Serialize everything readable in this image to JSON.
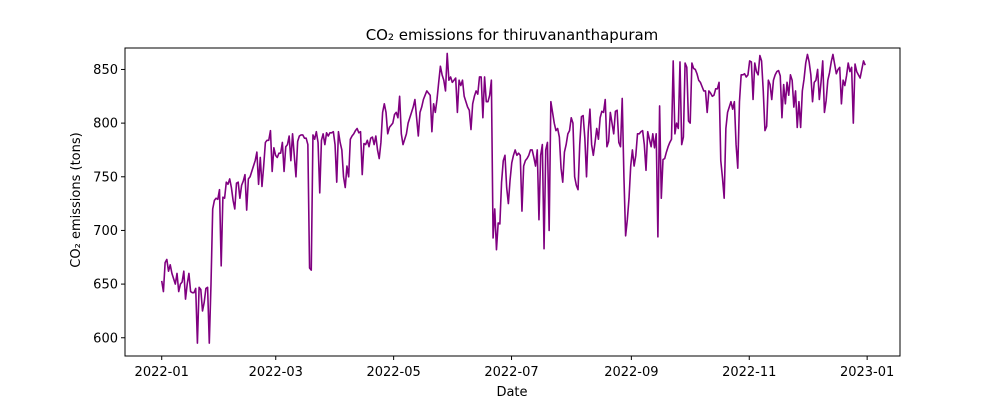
{
  "chart_data": {
    "type": "line",
    "title": "CO₂ emissions for thiruvananthapuram",
    "xlabel": "Date",
    "ylabel": "CO₂ emissions (tons)",
    "x_start": "2022-01-01",
    "x_end": "2022-12-31",
    "xlim": [
      "2021-12-13",
      "2023-01-18"
    ],
    "ylim": [
      583,
      870
    ],
    "x_ticks": [
      "2022-01-01",
      "2022-03-01",
      "2022-05-01",
      "2022-07-01",
      "2022-09-01",
      "2022-11-01",
      "2023-01-01"
    ],
    "x_tick_labels": [
      "2022-01",
      "2022-03",
      "2022-05",
      "2022-07",
      "2022-09",
      "2022-11",
      "2023-01"
    ],
    "y_ticks": [
      600,
      650,
      700,
      750,
      800,
      850
    ],
    "y_tick_labels": [
      "600",
      "650",
      "700",
      "750",
      "800",
      "850"
    ],
    "grid": false,
    "line_color": "#800080",
    "series": [
      {
        "values": [
          653,
          643,
          670,
          673,
          662,
          668,
          660,
          655,
          650,
          660,
          643,
          650,
          652,
          662,
          636,
          650,
          660,
          643,
          642,
          642,
          646,
          595,
          647,
          645,
          625,
          633,
          646,
          647,
          595,
          650,
          720,
          728,
          730,
          729,
          738,
          667,
          731,
          730,
          745,
          743,
          748,
          740,
          728,
          720,
          744,
          745,
          730,
          742,
          746,
          752,
          719,
          748,
          750,
          755,
          760,
          765,
          773,
          743,
          768,
          741,
          760,
          782,
          784,
          784,
          793,
          755,
          777,
          770,
          768,
          772,
          772,
          782,
          755,
          778,
          780,
          788,
          765,
          790,
          770,
          750,
          783,
          788,
          789,
          789,
          786,
          786,
          780,
          665,
          663,
          789,
          785,
          792,
          782,
          735,
          784,
          790,
          780,
          791,
          788,
          791,
          791,
          792,
          780,
          745,
          792,
          782,
          775,
          750,
          740,
          760,
          750,
          785,
          788,
          790,
          793,
          795,
          791,
          792,
          752,
          781,
          780,
          784,
          778,
          786,
          787,
          780,
          788,
          775,
          767,
          782,
          810,
          818,
          810,
          790,
          796,
          798,
          800,
          808,
          810,
          805,
          825,
          790,
          780,
          785,
          790,
          800,
          805,
          810,
          815,
          822,
          805,
          788,
          810,
          815,
          822,
          826,
          830,
          828,
          826,
          792,
          818,
          810,
          822,
          838,
          853,
          845,
          840,
          830,
          865,
          840,
          843,
          838,
          840,
          842,
          810,
          840,
          835,
          840,
          825,
          820,
          815,
          812,
          794,
          818,
          825,
          830,
          827,
          843,
          843,
          805,
          843,
          820,
          820,
          826,
          840,
          693,
          720,
          682,
          707,
          706,
          745,
          765,
          770,
          740,
          725,
          747,
          763,
          770,
          775,
          770,
          772,
          770,
          718,
          760,
          765,
          767,
          770,
          775,
          775,
          768,
          760,
          775,
          710,
          770,
          780,
          683,
          775,
          782,
          700,
          820,
          810,
          800,
          793,
          795,
          787,
          758,
          745,
          773,
          780,
          790,
          793,
          805,
          800,
          750,
          742,
          738,
          780,
          806,
          807,
          786,
          750,
          792,
          813,
          780,
          770,
          782,
          795,
          785,
          805,
          811,
          810,
          822,
          778,
          783,
          810,
          800,
          790,
          811,
          812,
          782,
          778,
          823,
          750,
          695,
          710,
          730,
          760,
          775,
          760,
          770,
          790,
          790,
          792,
          793,
          780,
          756,
          792,
          785,
          778,
          790,
          777,
          790,
          694,
          816,
          730,
          766,
          767,
          773,
          778,
          782,
          785,
          858,
          790,
          800,
          795,
          857,
          780,
          787,
          856,
          852,
          802,
          800,
          856,
          851,
          850,
          846,
          840,
          838,
          834,
          830,
          830,
          810,
          830,
          828,
          825,
          826,
          832,
          832,
          838,
          765,
          749,
          730,
          795,
          810,
          815,
          820,
          813,
          820,
          780,
          758,
          820,
          845,
          845,
          846,
          843,
          845,
          858,
          857,
          822,
          856,
          848,
          845,
          863,
          858,
          830,
          793,
          797,
          840,
          836,
          822,
          840,
          845,
          848,
          849,
          844,
          805,
          836,
          818,
          838,
          826,
          845,
          840,
          815,
          830,
          796,
          820,
          796,
          830,
          841,
          856,
          864,
          857,
          845,
          820,
          838,
          840,
          850,
          822,
          838,
          858,
          810,
          821,
          840,
          847,
          857,
          864,
          855,
          846,
          850,
          852,
          818,
          840,
          835,
          844,
          856,
          848,
          852,
          800,
          855,
          848,
          845,
          842,
          850,
          858,
          854
        ]
      }
    ]
  }
}
